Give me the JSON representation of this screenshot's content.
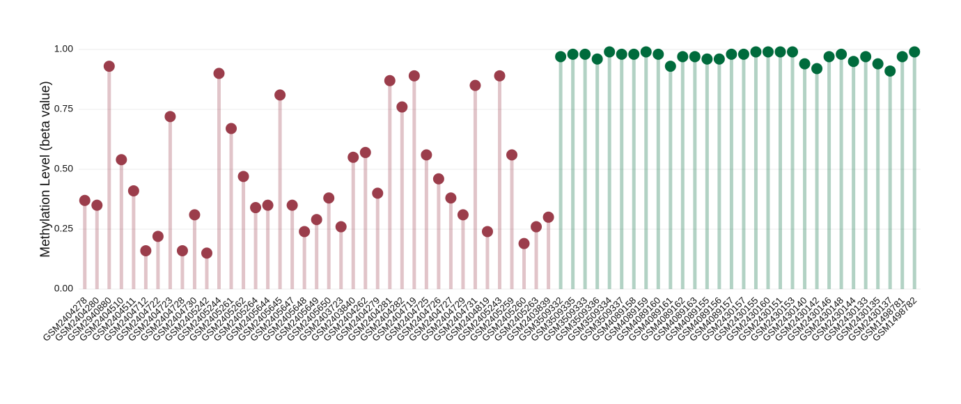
{
  "chart_data": {
    "type": "lollipop",
    "y_label": "Methylation Level (beta value)",
    "categories": [
      "GSM2404278",
      "GSM2404280",
      "GSM2940880",
      "GSM2404510",
      "GSM2404511",
      "GSM2404712",
      "GSM2404722",
      "GSM2404723",
      "GSM2404728",
      "GSM2404730",
      "GSM2405242",
      "GSM2405244",
      "GSM2405261",
      "GSM2405262",
      "GSM2405264",
      "GSM2405644",
      "GSM2405645",
      "GSM2405647",
      "GSM2405648",
      "GSM2405649",
      "GSM2405650",
      "GSM2403723",
      "GSM2403840",
      "GSM2404262",
      "GSM2404279",
      "GSM2404281",
      "GSM2404282",
      "GSM2404719",
      "GSM2404725",
      "GSM2404726",
      "GSM2404727",
      "GSM2404729",
      "GSM2404731",
      "GSM2404819",
      "GSM2405243",
      "GSM2405259",
      "GSM2405260",
      "GSM2405263",
      "GSM2403839",
      "GSM3509332",
      "GSM3509335",
      "GSM3509333",
      "GSM3509336",
      "GSM3509334",
      "GSM3509337",
      "GSM4089158",
      "GSM4089159",
      "GSM4089160",
      "GSM4089161",
      "GSM4089162",
      "GSM4089163",
      "GSM4089155",
      "GSM4089156",
      "GSM4089157",
      "GSM2430157",
      "GSM2430155",
      "GSM2430160",
      "GSM2430151",
      "GSM2430153",
      "GSM2430140",
      "GSM2430142",
      "GSM2430146",
      "GSM2430148",
      "GSM2430144",
      "GSM2430133",
      "GSM2430135",
      "GSM2430137",
      "GSM1498781",
      "GSM1498782"
    ],
    "values": [
      0.37,
      0.35,
      0.93,
      0.54,
      0.41,
      0.16,
      0.22,
      0.72,
      0.16,
      0.31,
      0.15,
      0.9,
      0.67,
      0.47,
      0.34,
      0.35,
      0.81,
      0.35,
      0.24,
      0.29,
      0.38,
      0.26,
      0.55,
      0.57,
      0.4,
      0.87,
      0.76,
      0.89,
      0.56,
      0.46,
      0.38,
      0.31,
      0.85,
      0.24,
      0.89,
      0.56,
      0.19,
      0.26,
      0.3,
      0.97,
      0.98,
      0.98,
      0.96,
      0.99,
      0.98,
      0.98,
      0.99,
      0.98,
      0.93,
      0.97,
      0.97,
      0.96,
      0.96,
      0.98,
      0.98,
      0.99,
      0.99,
      0.99,
      0.99,
      0.94,
      0.92,
      0.97,
      0.98,
      0.95,
      0.97,
      0.94,
      0.91,
      0.97,
      0.99
    ],
    "colors": [
      "#9b3d4b",
      "#9b3d4b",
      "#9b3d4b",
      "#9b3d4b",
      "#9b3d4b",
      "#9b3d4b",
      "#9b3d4b",
      "#9b3d4b",
      "#9b3d4b",
      "#9b3d4b",
      "#9b3d4b",
      "#9b3d4b",
      "#9b3d4b",
      "#9b3d4b",
      "#9b3d4b",
      "#9b3d4b",
      "#9b3d4b",
      "#9b3d4b",
      "#9b3d4b",
      "#9b3d4b",
      "#9b3d4b",
      "#9b3d4b",
      "#9b3d4b",
      "#9b3d4b",
      "#9b3d4b",
      "#9b3d4b",
      "#9b3d4b",
      "#9b3d4b",
      "#9b3d4b",
      "#9b3d4b",
      "#9b3d4b",
      "#9b3d4b",
      "#9b3d4b",
      "#9b3d4b",
      "#9b3d4b",
      "#9b3d4b",
      "#9b3d4b",
      "#9b3d4b",
      "#9b3d4b",
      "#006b3c",
      "#006b3c",
      "#006b3c",
      "#006b3c",
      "#006b3c",
      "#006b3c",
      "#006b3c",
      "#006b3c",
      "#006b3c",
      "#006b3c",
      "#006b3c",
      "#006b3c",
      "#006b3c",
      "#006b3c",
      "#006b3c",
      "#006b3c",
      "#006b3c",
      "#006b3c",
      "#006b3c",
      "#006b3c",
      "#006b3c",
      "#006b3c",
      "#006b3c",
      "#006b3c",
      "#006b3c",
      "#006b3c",
      "#006b3c",
      "#006b3c",
      "#006b3c",
      "#006b3c"
    ],
    "ylim": [
      0,
      1
    ],
    "yticks": [
      {
        "value": 0,
        "label": "0.00"
      },
      {
        "value": 0.25,
        "label": "0.25"
      },
      {
        "value": 0.5,
        "label": "0.50"
      },
      {
        "value": 0.75,
        "label": "0.75"
      },
      {
        "value": 1,
        "label": "1.00"
      }
    ],
    "grid": true
  }
}
